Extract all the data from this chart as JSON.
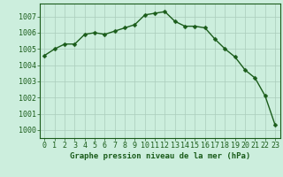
{
  "x": [
    0,
    1,
    2,
    3,
    4,
    5,
    6,
    7,
    8,
    9,
    10,
    11,
    12,
    13,
    14,
    15,
    16,
    17,
    18,
    19,
    20,
    21,
    22,
    23
  ],
  "y": [
    1004.6,
    1005.0,
    1005.3,
    1005.3,
    1005.9,
    1006.0,
    1005.9,
    1006.1,
    1006.3,
    1006.5,
    1007.1,
    1007.2,
    1007.3,
    1006.7,
    1006.4,
    1006.4,
    1006.3,
    1005.6,
    1005.0,
    1004.5,
    1003.7,
    1003.2,
    1002.1,
    1000.3
  ],
  "line_color": "#1a5c1a",
  "marker": "D",
  "markersize": 2.5,
  "linewidth": 1.0,
  "background_color": "#cceedd",
  "grid_color": "#aaccbb",
  "xlabel": "Graphe pression niveau de la mer (hPa)",
  "xlabel_fontsize": 6.5,
  "tick_fontsize": 6.0,
  "ytick_labels": [
    1000,
    1001,
    1002,
    1003,
    1004,
    1005,
    1006,
    1007
  ],
  "ylim": [
    999.5,
    1007.8
  ],
  "xlim": [
    -0.5,
    23.5
  ],
  "axis_color": "#1a5c1a"
}
